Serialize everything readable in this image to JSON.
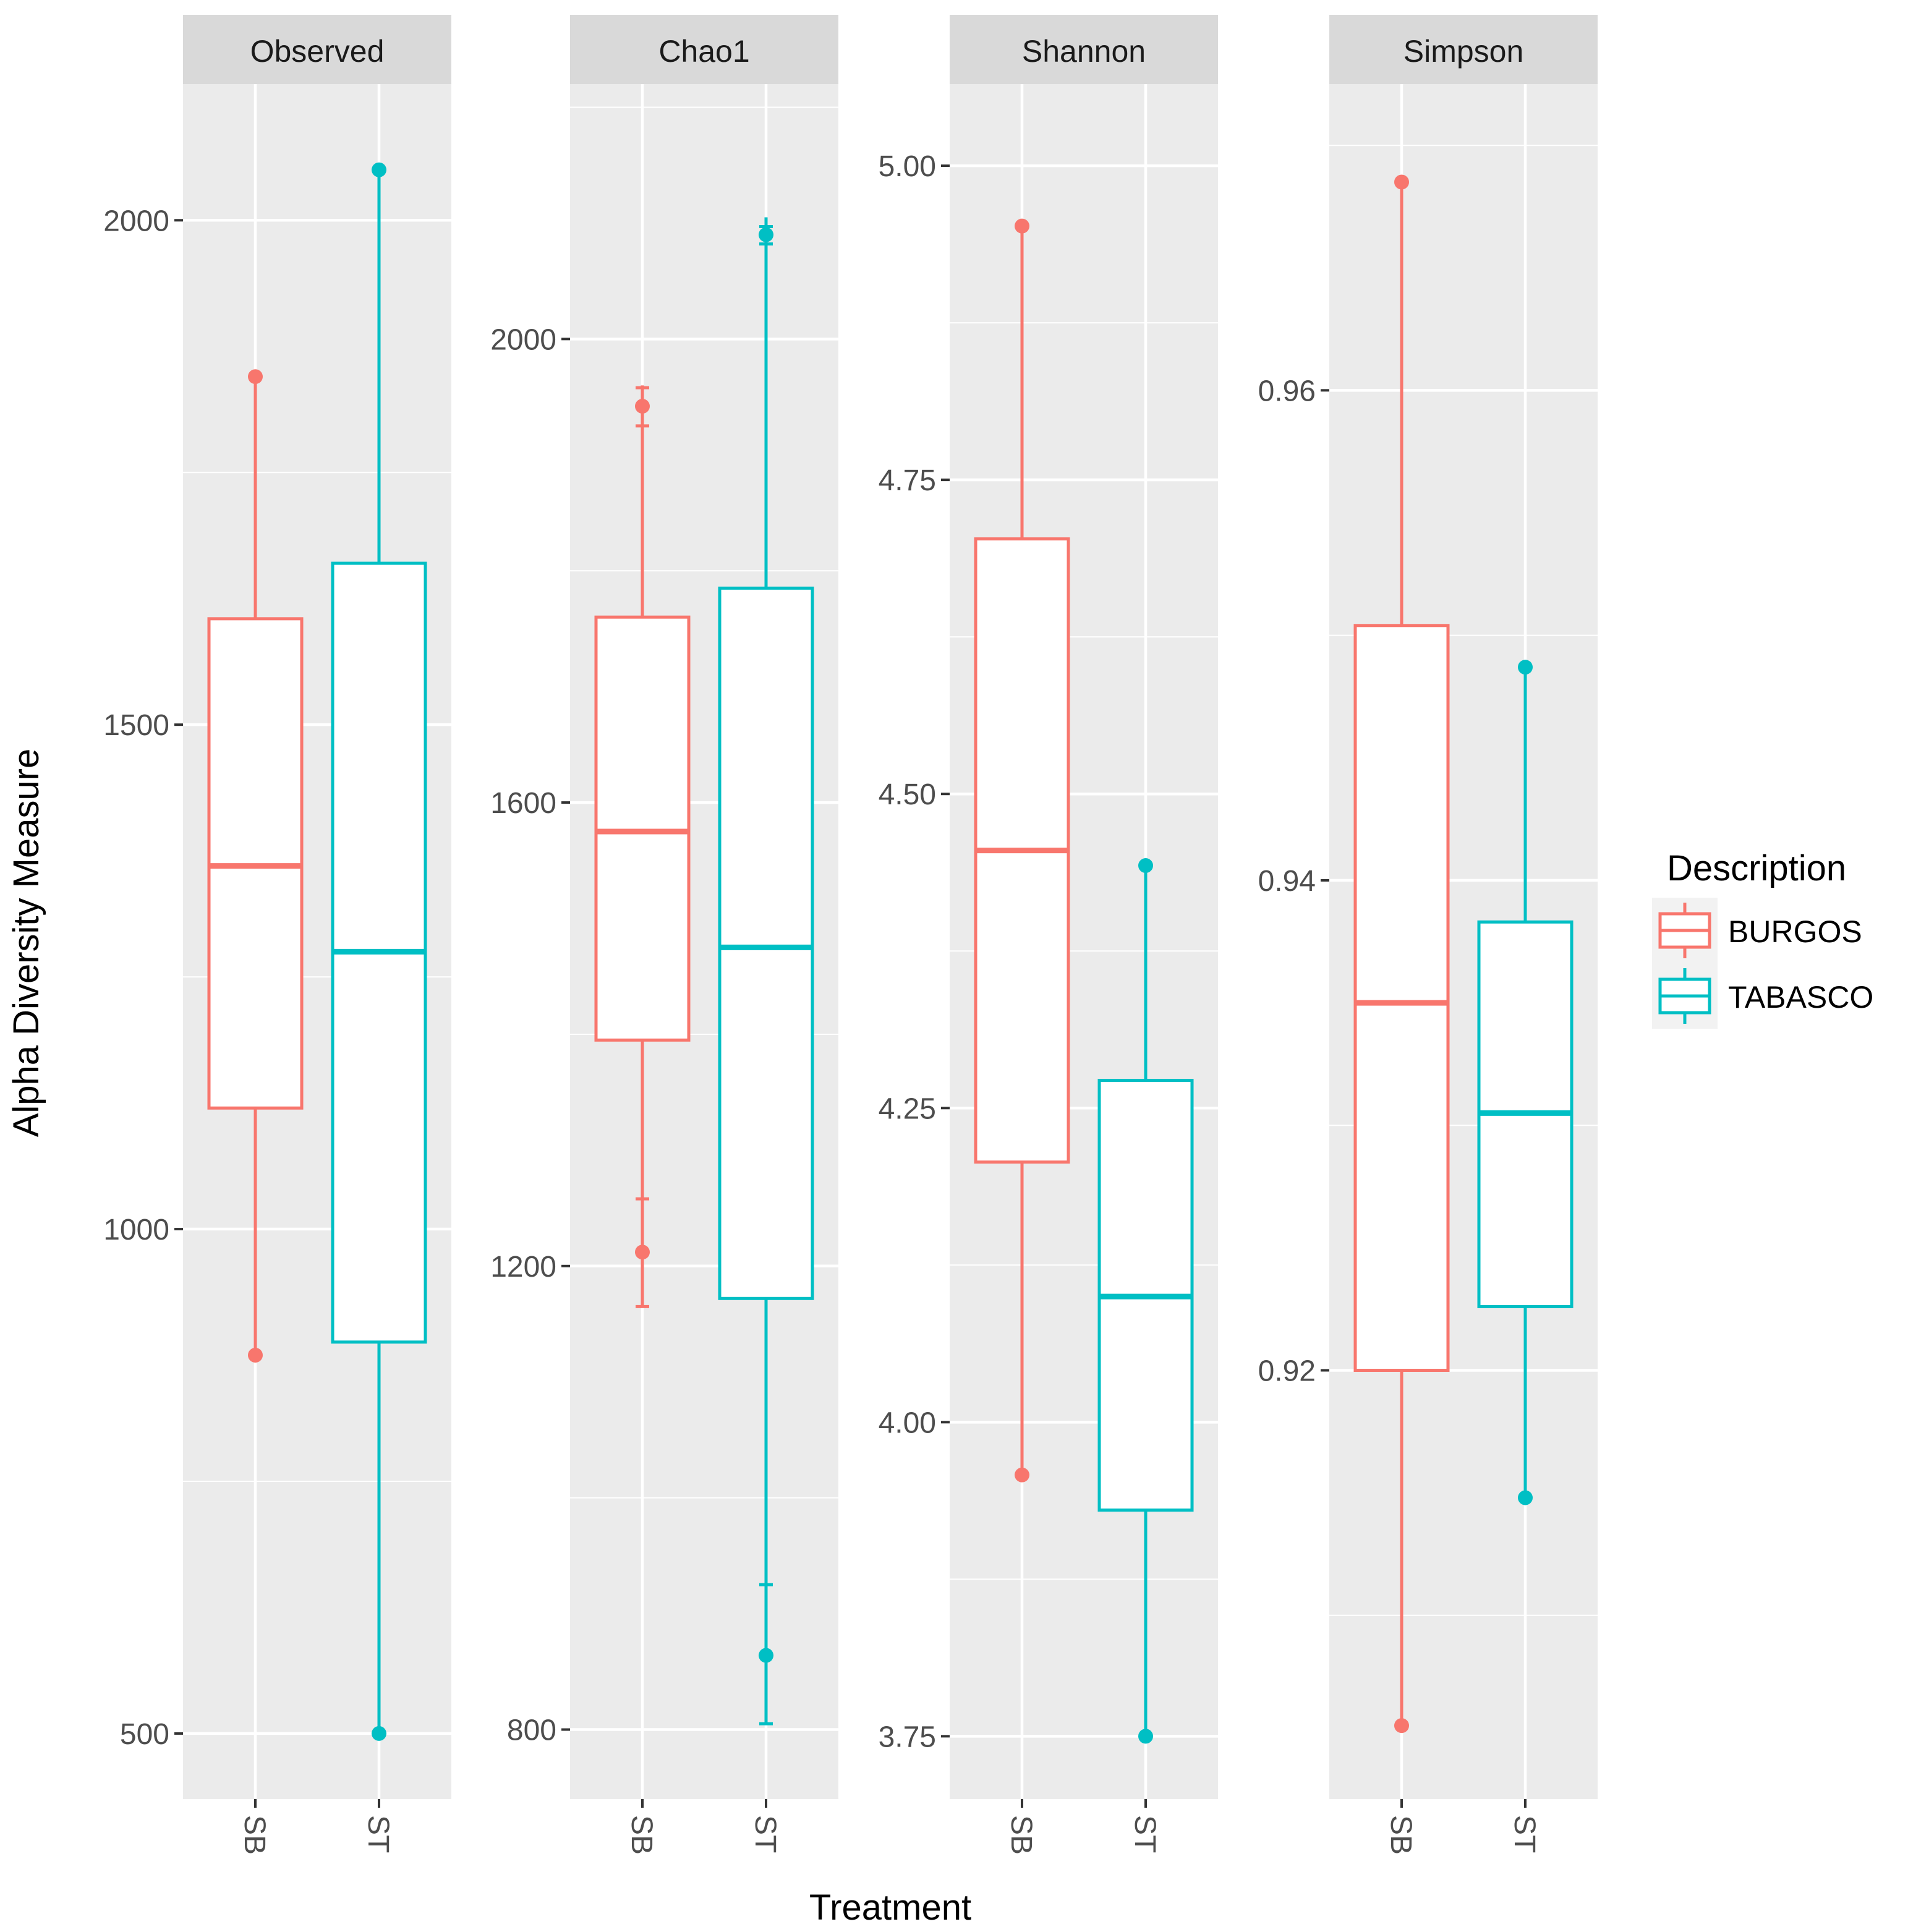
{
  "chart_data": {
    "type": "boxplot",
    "xlabel": "Treatment",
    "ylabel": "Alpha Diversity Measure",
    "categories": [
      "SB",
      "ST"
    ],
    "legend": {
      "title": "Description",
      "position": "right",
      "entries": [
        {
          "label": "BURGOS",
          "color": "#F8766D"
        },
        {
          "label": "TABASCO",
          "color": "#00BFC4"
        }
      ]
    },
    "colors": {
      "BURGOS": "#F8766D",
      "TABASCO": "#00BFC4",
      "panel_bg": "#EBEBEB",
      "strip_bg": "#D9D9D9",
      "grid": "#FFFFFF",
      "text": "#4D4D4D"
    },
    "facets": [
      {
        "title": "Observed",
        "ylim": [
          435,
          2135
        ],
        "ticks": [
          500,
          1000,
          1500,
          2000
        ],
        "tick_labels": [
          "500",
          "1000",
          "1500",
          "2000"
        ],
        "boxes": [
          {
            "category": "SB",
            "group": "BURGOS",
            "min": 875,
            "q1": 1120,
            "median": 1360,
            "q3": 1605,
            "max": 1845,
            "points": [
              1845,
              875
            ],
            "errorbars": []
          },
          {
            "category": "ST",
            "group": "TABASCO",
            "min": 500,
            "q1": 888,
            "median": 1275,
            "q3": 1660,
            "max": 2050,
            "points": [
              2050,
              500
            ],
            "errorbars": []
          }
        ]
      },
      {
        "title": "Chao1",
        "ylim": [
          740,
          2220
        ],
        "ticks": [
          800,
          1200,
          1600,
          2000
        ],
        "tick_labels": [
          "800",
          "1200",
          "1600",
          "2000"
        ],
        "boxes": [
          {
            "category": "SB",
            "group": "BURGOS",
            "min": 1165,
            "q1": 1395,
            "median": 1575,
            "q3": 1760,
            "max": 1960,
            "points": [
              1942,
              1212
            ],
            "errorbars": [
              {
                "low": 1925,
                "high": 1958
              },
              {
                "low": 1165,
                "high": 1258
              }
            ]
          },
          {
            "category": "ST",
            "group": "TABASCO",
            "min": 805,
            "q1": 1172,
            "median": 1475,
            "q3": 1785,
            "max": 2105,
            "points": [
              2090,
              864
            ],
            "errorbars": [
              {
                "low": 2082,
                "high": 2097
              },
              {
                "low": 805,
                "high": 925
              }
            ]
          }
        ]
      },
      {
        "title": "Shannon",
        "ylim": [
          3.7,
          5.065
        ],
        "ticks": [
          3.75,
          4.0,
          4.25,
          4.5,
          4.75,
          5.0
        ],
        "tick_labels": [
          "3.75",
          "4.00",
          "4.25",
          "4.50",
          "4.75",
          "5.00"
        ],
        "boxes": [
          {
            "category": "SB",
            "group": "BURGOS",
            "min": 3.958,
            "q1": 4.207,
            "median": 4.455,
            "q3": 4.703,
            "max": 4.952,
            "points": [
              4.952,
              3.958
            ],
            "errorbars": []
          },
          {
            "category": "ST",
            "group": "TABASCO",
            "min": 3.75,
            "q1": 3.93,
            "median": 4.1,
            "q3": 4.272,
            "max": 4.443,
            "points": [
              4.443,
              3.75
            ],
            "errorbars": []
          }
        ]
      },
      {
        "title": "Simpson",
        "ylim": [
          0.9025,
          0.9725
        ],
        "ticks": [
          0.92,
          0.94,
          0.96
        ],
        "tick_labels": [
          "0.92",
          "0.94",
          "0.96"
        ],
        "boxes": [
          {
            "category": "SB",
            "group": "BURGOS",
            "min": 0.9055,
            "q1": 0.92,
            "median": 0.935,
            "q3": 0.9504,
            "max": 0.9685,
            "points": [
              0.9685,
              0.9055
            ],
            "errorbars": []
          },
          {
            "category": "ST",
            "group": "TABASCO",
            "min": 0.9148,
            "q1": 0.9226,
            "median": 0.9305,
            "q3": 0.9383,
            "max": 0.9487,
            "points": [
              0.9487,
              0.9148
            ],
            "errorbars": []
          }
        ]
      }
    ]
  }
}
